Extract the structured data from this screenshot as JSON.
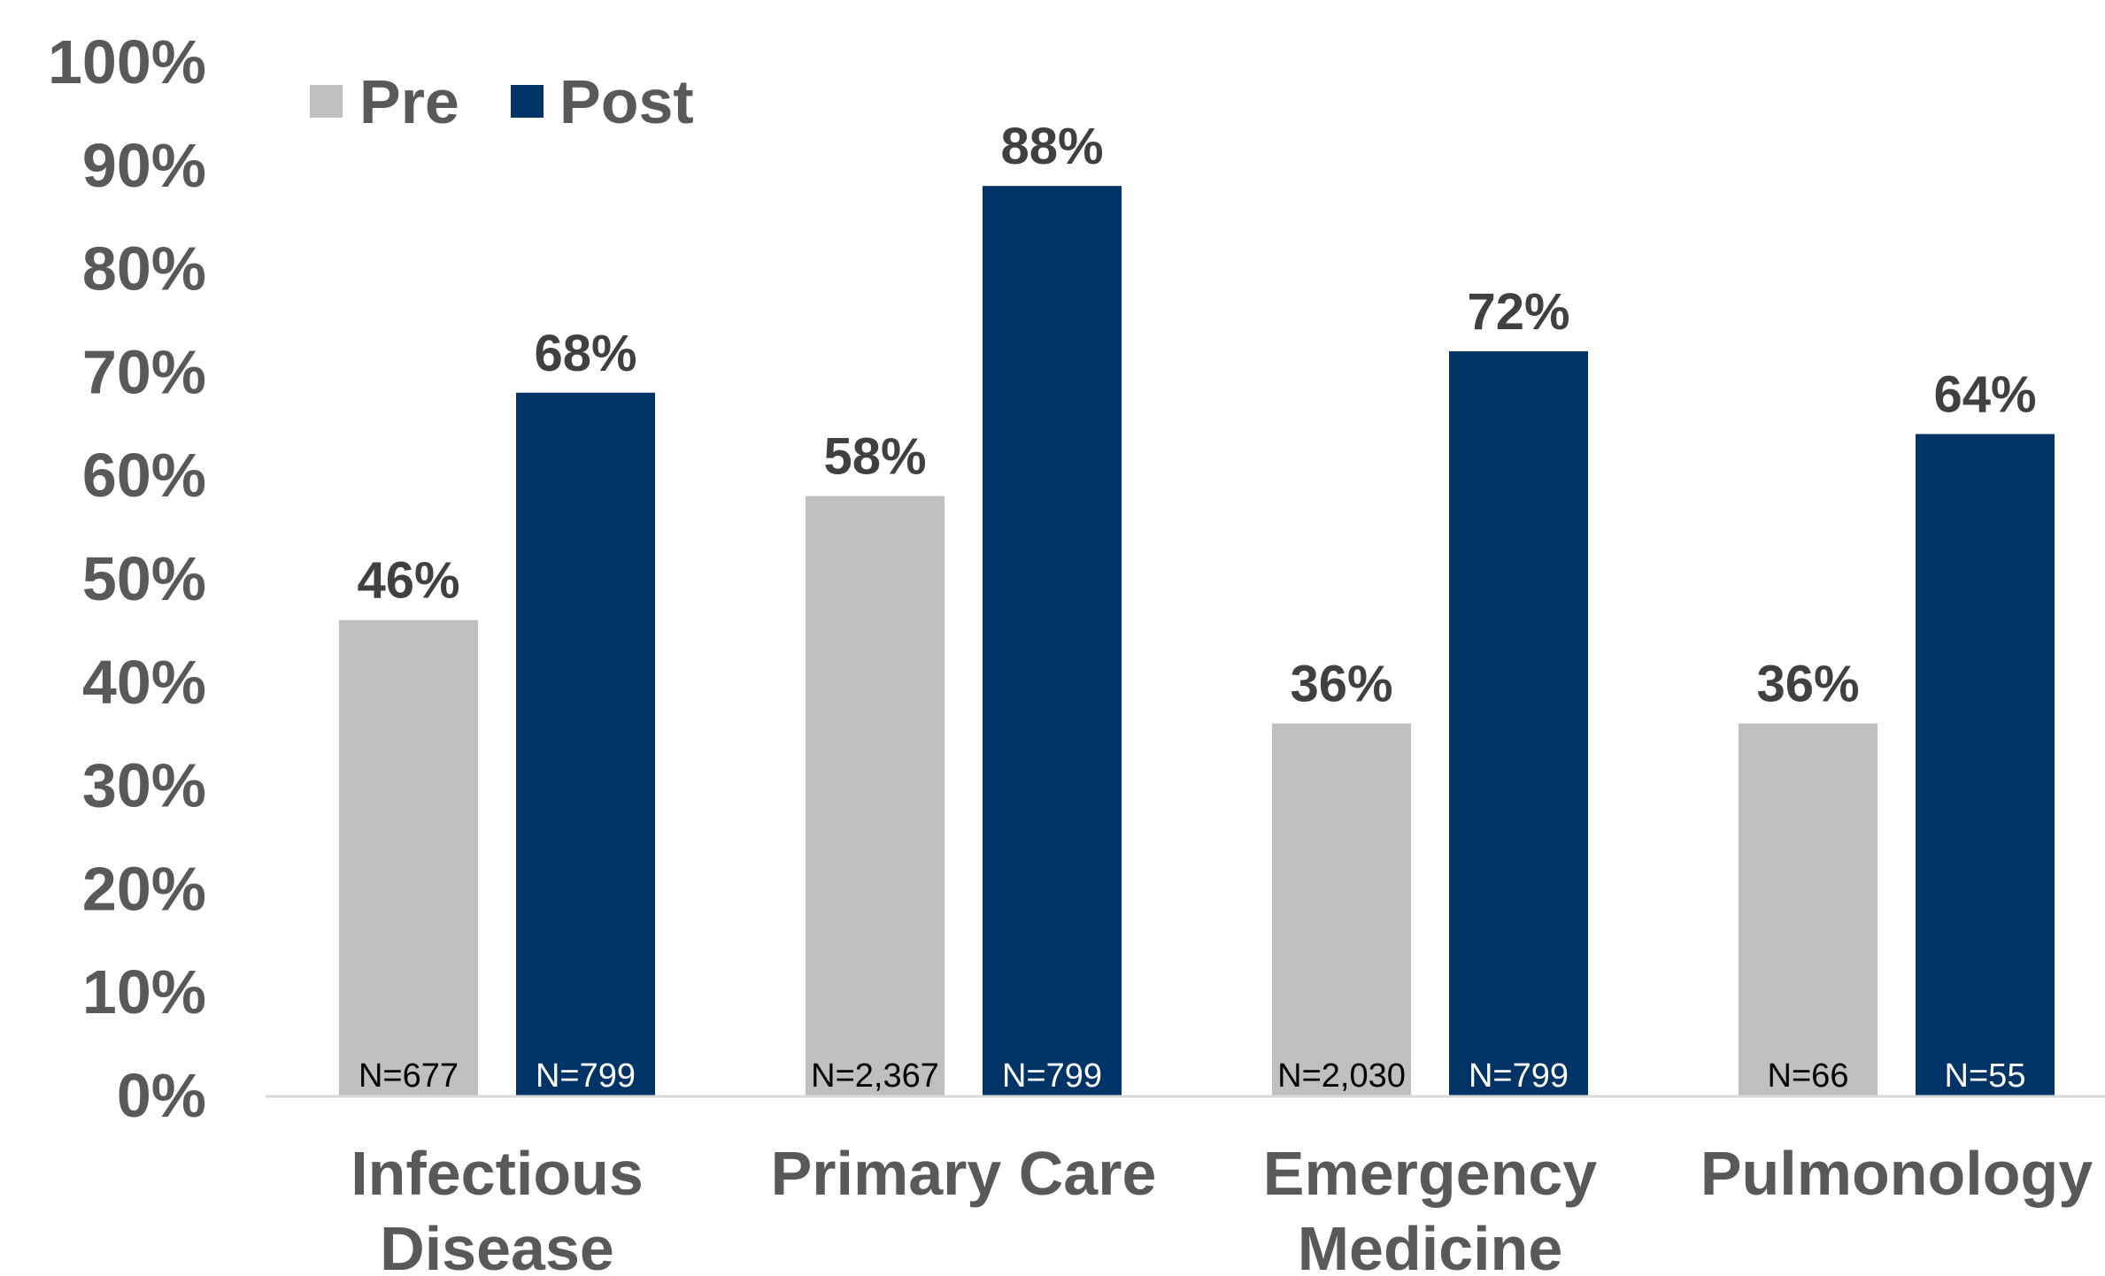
{
  "chart_data": {
    "type": "bar",
    "categories": [
      [
        "Infectious",
        "Disease"
      ],
      [
        "Primary Care"
      ],
      [
        "Emergency",
        "Medicine"
      ],
      [
        "Pulmonology"
      ]
    ],
    "series": [
      {
        "name": "Pre",
        "color": "#bfbfbf",
        "values": [
          46,
          58,
          36,
          36
        ],
        "value_labels": [
          "46%",
          "58%",
          "36%",
          "36%"
        ],
        "n_labels": [
          "N=677",
          "N=2,367",
          "N=2,030",
          "N=66"
        ],
        "n_label_color": "#000000"
      },
      {
        "name": "Post",
        "color": "#003366",
        "values": [
          68,
          88,
          72,
          64
        ],
        "value_labels": [
          "68%",
          "88%",
          "72%",
          "64%"
        ],
        "n_labels": [
          "N=799",
          "N=799",
          "N=799",
          "N=55"
        ],
        "n_label_color": "#ffffff"
      }
    ],
    "ylim": [
      0,
      100
    ],
    "yticks": [
      0,
      10,
      20,
      30,
      40,
      50,
      60,
      70,
      80,
      90,
      100
    ],
    "ytick_labels": [
      "0%",
      "10%",
      "20%",
      "30%",
      "40%",
      "50%",
      "60%",
      "70%",
      "80%",
      "90%",
      "100%"
    ],
    "title": "",
    "xlabel": "",
    "ylabel": "",
    "grid": false,
    "legend_position": "top-left"
  }
}
